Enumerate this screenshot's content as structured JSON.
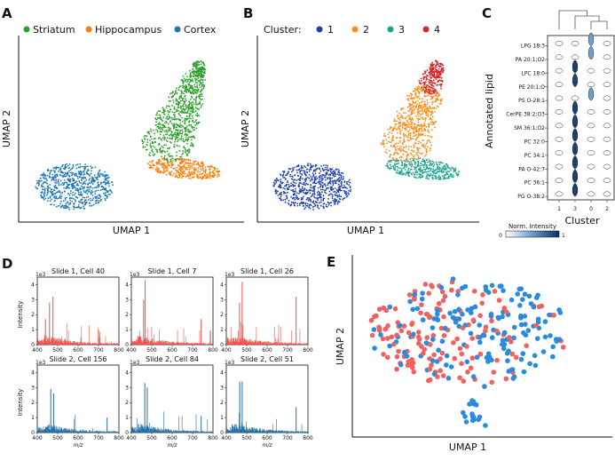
{
  "panels": {
    "A": {
      "letter": "A",
      "legend": [
        {
          "label": "Striatum",
          "color": "#2ca02c"
        },
        {
          "label": "Hippocampus",
          "color": "#ff7f0e"
        },
        {
          "label": "Cortex",
          "color": "#1f77b4"
        }
      ],
      "xlabel": "UMAP 1",
      "ylabel": "UMAP 2"
    },
    "B": {
      "letter": "B",
      "legend_title": "Cluster:",
      "legend": [
        {
          "label": "1",
          "color": "#1f3fa8"
        },
        {
          "label": "2",
          "color": "#ff8c1a"
        },
        {
          "label": "3",
          "color": "#17a58a"
        },
        {
          "label": "4",
          "color": "#d62728"
        }
      ],
      "xlabel": "UMAP 1",
      "ylabel": "UMAP 2"
    },
    "C": {
      "letter": "C",
      "ylabel": "Annotated lipid",
      "xlabel": "Cluster",
      "lipids": [
        "LPG 18:3",
        "PA 20:1;O2",
        "LPC 18:0",
        "PE 20:1;O",
        "PS O-28:1",
        "CerPE 38:2;O3",
        "SM 36:1;O2",
        "PC 32:0",
        "PC 34:1",
        "PA O-42:7",
        "PC 36:1",
        "PG O-38:2"
      ],
      "clusters": [
        "1",
        "3",
        "0",
        "2"
      ],
      "colorbar_label": "Norm. Intensity",
      "colorbar_ticks": [
        "0",
        "1"
      ]
    },
    "D": {
      "letter": "D",
      "spectra": [
        {
          "title": "Slide 1, Cell 40",
          "color": "#f0504a"
        },
        {
          "title": "Slide 1, Cell 7",
          "color": "#f0504a"
        },
        {
          "title": "Slide 1, Cell 26",
          "color": "#f0504a"
        },
        {
          "title": "Slide 2, Cell 156",
          "color": "#1f6fa8"
        },
        {
          "title": "Slide 2, Cell 84",
          "color": "#1f6fa8"
        },
        {
          "title": "Slide 2, Cell 51",
          "color": "#1f6fa8"
        }
      ],
      "ylabel": "Intensity",
      "xlabel": "m/z",
      "scale": "1e3",
      "yticks": [
        "0",
        "1",
        "2",
        "3",
        "4"
      ],
      "xticks": [
        "400",
        "500",
        "600",
        "700",
        "800"
      ]
    },
    "E": {
      "letter": "E",
      "xlabel": "UMAP 1",
      "ylabel": "UMAP 2",
      "colors": [
        "#f0625d",
        "#2a8bde"
      ]
    }
  },
  "chart_data": [
    {
      "type": "scatter",
      "title": "A",
      "xlabel": "UMAP 1",
      "ylabel": "UMAP 2",
      "series": [
        {
          "name": "Striatum"
        },
        {
          "name": "Hippocampus"
        },
        {
          "name": "Cortex"
        }
      ]
    },
    {
      "type": "scatter",
      "title": "B",
      "xlabel": "UMAP 1",
      "ylabel": "UMAP 2",
      "series": [
        {
          "name": "1"
        },
        {
          "name": "2"
        },
        {
          "name": "3"
        },
        {
          "name": "4"
        }
      ]
    },
    {
      "type": "heatmap",
      "title": "C",
      "xlabel": "Cluster",
      "ylabel": "Annotated lipid",
      "categories": [
        "1",
        "3",
        "0",
        "2"
      ],
      "rows": [
        "LPG 18:3",
        "PA 20:1;O2",
        "LPC 18:0",
        "PE 20:1;O",
        "PS O-28:1",
        "CerPE 38:2;O3",
        "SM 36:1;O2",
        "PC 32:0",
        "PC 34:1",
        "PA O-42:7",
        "PC 36:1",
        "PG O-38:2"
      ],
      "peak_cluster": [
        "0",
        "0",
        "3",
        "3",
        "0",
        "3",
        "3",
        "3",
        "3",
        "3",
        "3",
        "3"
      ]
    },
    {
      "type": "bar",
      "title": "D",
      "xlabel": "m/z",
      "ylabel": "Intensity (1e3)",
      "xlim": [
        400,
        800
      ],
      "ylim": [
        0,
        4.5
      ],
      "series": [
        {
          "name": "Slide 1, Cell 40",
          "peaks": [
            [
              460,
              2.8
            ],
            [
              477,
              3.2
            ],
            [
              440,
              1.7
            ]
          ]
        },
        {
          "name": "Slide 1, Cell 7",
          "peaks": [
            [
              468,
              4.3
            ],
            [
              460,
              3.0
            ],
            [
              742,
              1.7
            ]
          ]
        },
        {
          "name": "Slide 1, Cell 26",
          "peaks": [
            [
              478,
              4.2
            ],
            [
              465,
              2.8
            ],
            [
              742,
              3.2
            ]
          ]
        },
        {
          "name": "Slide 2, Cell 156",
          "peaks": [
            [
              466,
              2.9
            ],
            [
              480,
              2.6
            ],
            [
              742,
              1.0
            ]
          ]
        },
        {
          "name": "Slide 2, Cell 84",
          "peaks": [
            [
              466,
              3.3
            ],
            [
              478,
              3.0
            ],
            [
              742,
              1.1
            ]
          ]
        },
        {
          "name": "Slide 2, Cell 51",
          "peaks": [
            [
              466,
              3.4
            ],
            [
              478,
              3.4
            ],
            [
              742,
              1.7
            ]
          ]
        }
      ]
    },
    {
      "type": "scatter",
      "title": "E",
      "xlabel": "UMAP 1",
      "ylabel": "UMAP 2",
      "series": [
        {
          "name": "red"
        },
        {
          "name": "blue"
        }
      ]
    }
  ]
}
